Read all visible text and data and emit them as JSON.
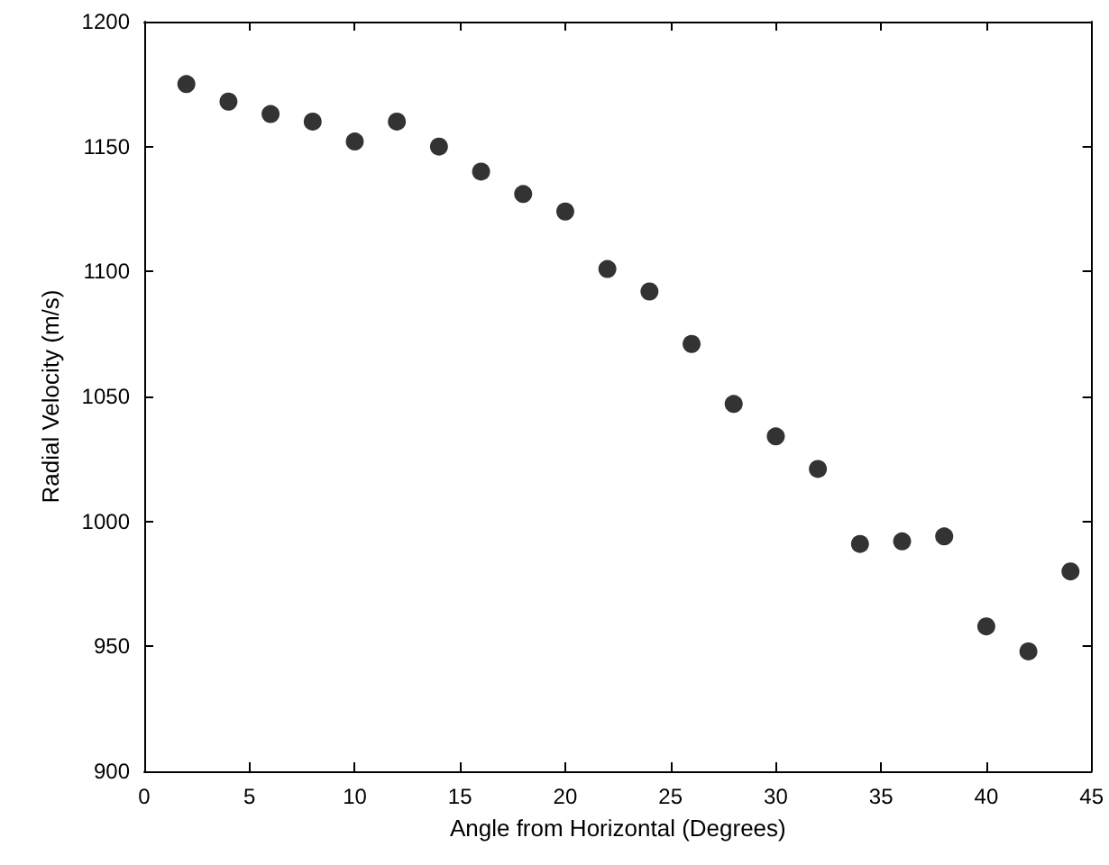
{
  "chart_data": {
    "type": "scatter",
    "xlabel": "Angle from Horizontal (Degrees)",
    "ylabel": "Radial Velocity (m/s)",
    "x": [
      2,
      4,
      6,
      8,
      10,
      12,
      14,
      16,
      18,
      20,
      22,
      24,
      26,
      28,
      30,
      32,
      34,
      36,
      38,
      40,
      42,
      44
    ],
    "series": [
      {
        "color": "#000000",
        "values": [
          1175,
          1168,
          1163,
          1160,
          1152,
          1160,
          1150,
          1140,
          1131,
          1124,
          1101,
          1092,
          1071,
          1047,
          1034,
          1021,
          991,
          992,
          994,
          958,
          948,
          980
        ]
      }
    ],
    "xlim": [
      0,
      45
    ],
    "xticks": [
      0,
      5,
      10,
      15,
      20,
      25,
      30,
      35,
      40,
      45
    ],
    "ylim": [
      900,
      1200
    ],
    "yticks": [
      900,
      950,
      1000,
      1050,
      1100,
      1150,
      1200
    ],
    "marker": "circle"
  }
}
